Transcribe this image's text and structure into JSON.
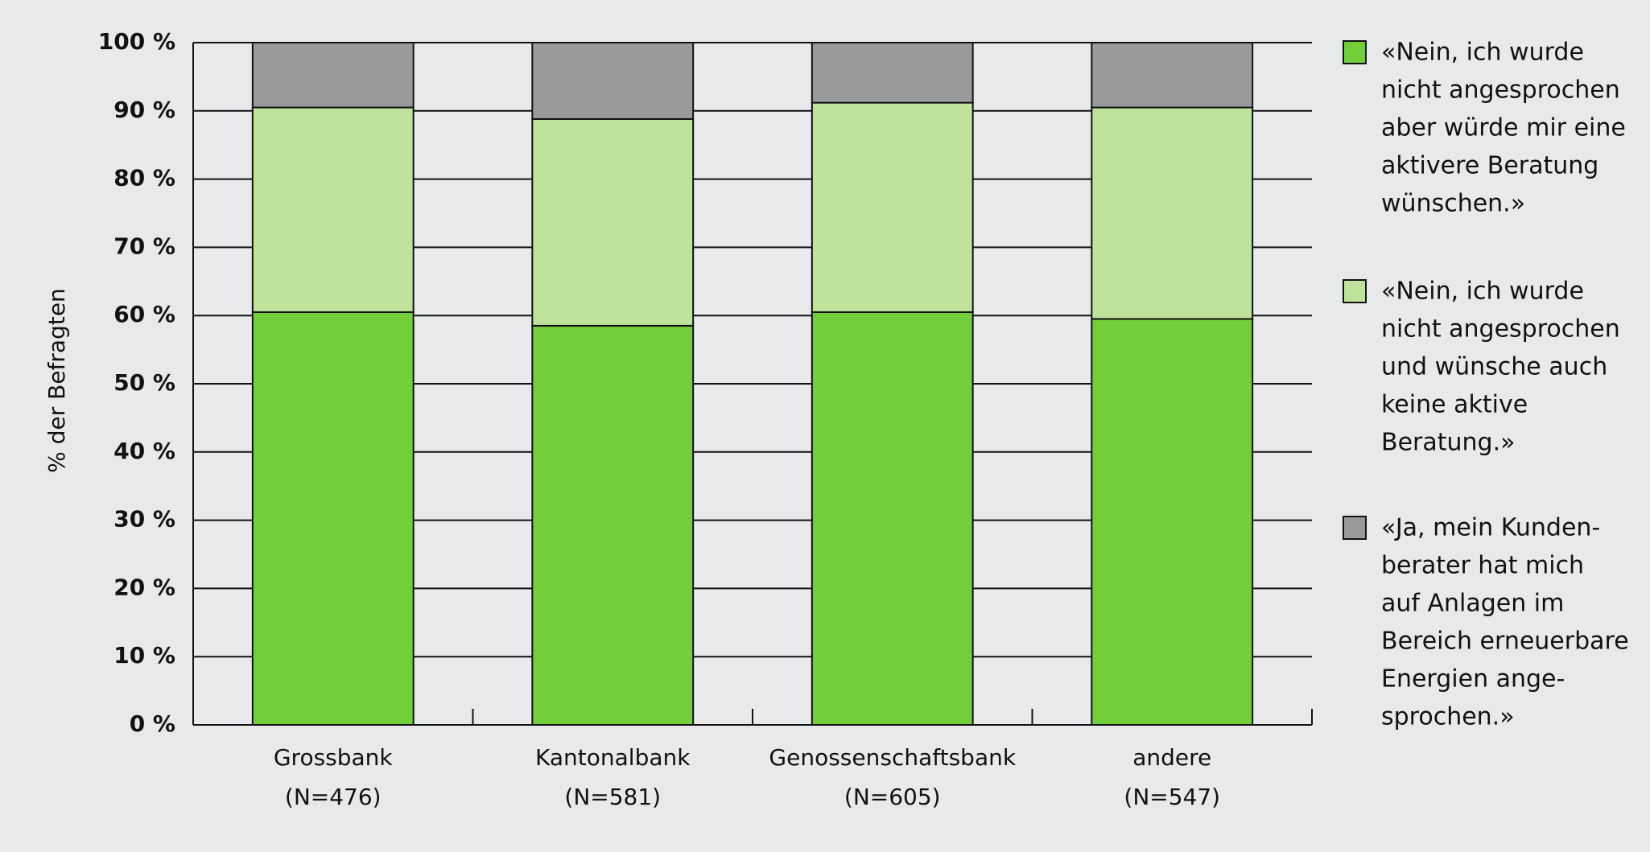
{
  "chart_data": {
    "type": "stacked_bar",
    "ylabel": "% der Befragten",
    "categories": [
      [
        "Grossbank",
        "(N=476)"
      ],
      [
        "Kantonalbank",
        "(N=581)"
      ],
      [
        "Genossenschaftsbank",
        "(N=605)"
      ],
      [
        "andere",
        "(N=547)"
      ]
    ],
    "series": [
      {
        "name": [
          "«Nein, ich wurde",
          "nicht angesprochen",
          "aber würde mir eine",
          "aktivere Beratung",
          "wünschen.»"
        ],
        "color": "#72cf3a",
        "values": [
          60.5,
          58.5,
          60.5,
          59.5
        ]
      },
      {
        "name": [
          "«Nein, ich wurde",
          "nicht angesprochen",
          "und wünsche auch",
          "keine aktive",
          "Beratung.»"
        ],
        "color": "#bfe39b",
        "values": [
          30,
          30.3,
          30.7,
          31
        ]
      },
      {
        "name": [
          "«Ja, mein Kunden-",
          "berater hat mich",
          "auf Anlagen im",
          "Bereich erneuerbare",
          "Energien ange-",
          "sprochen.»"
        ],
        "color": "#999a9b",
        "values": [
          9.5,
          11.2,
          8.8,
          9.5
        ]
      }
    ],
    "ylim": [
      0,
      100
    ],
    "yticks": [
      {
        "value": 0,
        "label": "0 %"
      },
      {
        "value": 10,
        "label": "10 %"
      },
      {
        "value": 20,
        "label": "20 %"
      },
      {
        "value": 30,
        "label": "30 %"
      },
      {
        "value": 40,
        "label": "40 %"
      },
      {
        "value": 50,
        "label": "50 %"
      },
      {
        "value": 60,
        "label": "60 %"
      },
      {
        "value": 70,
        "label": "70 %"
      },
      {
        "value": 80,
        "label": "80 %"
      },
      {
        "value": 90,
        "label": "90 %"
      },
      {
        "value": 100,
        "label": "100 %"
      }
    ],
    "grid": true
  }
}
